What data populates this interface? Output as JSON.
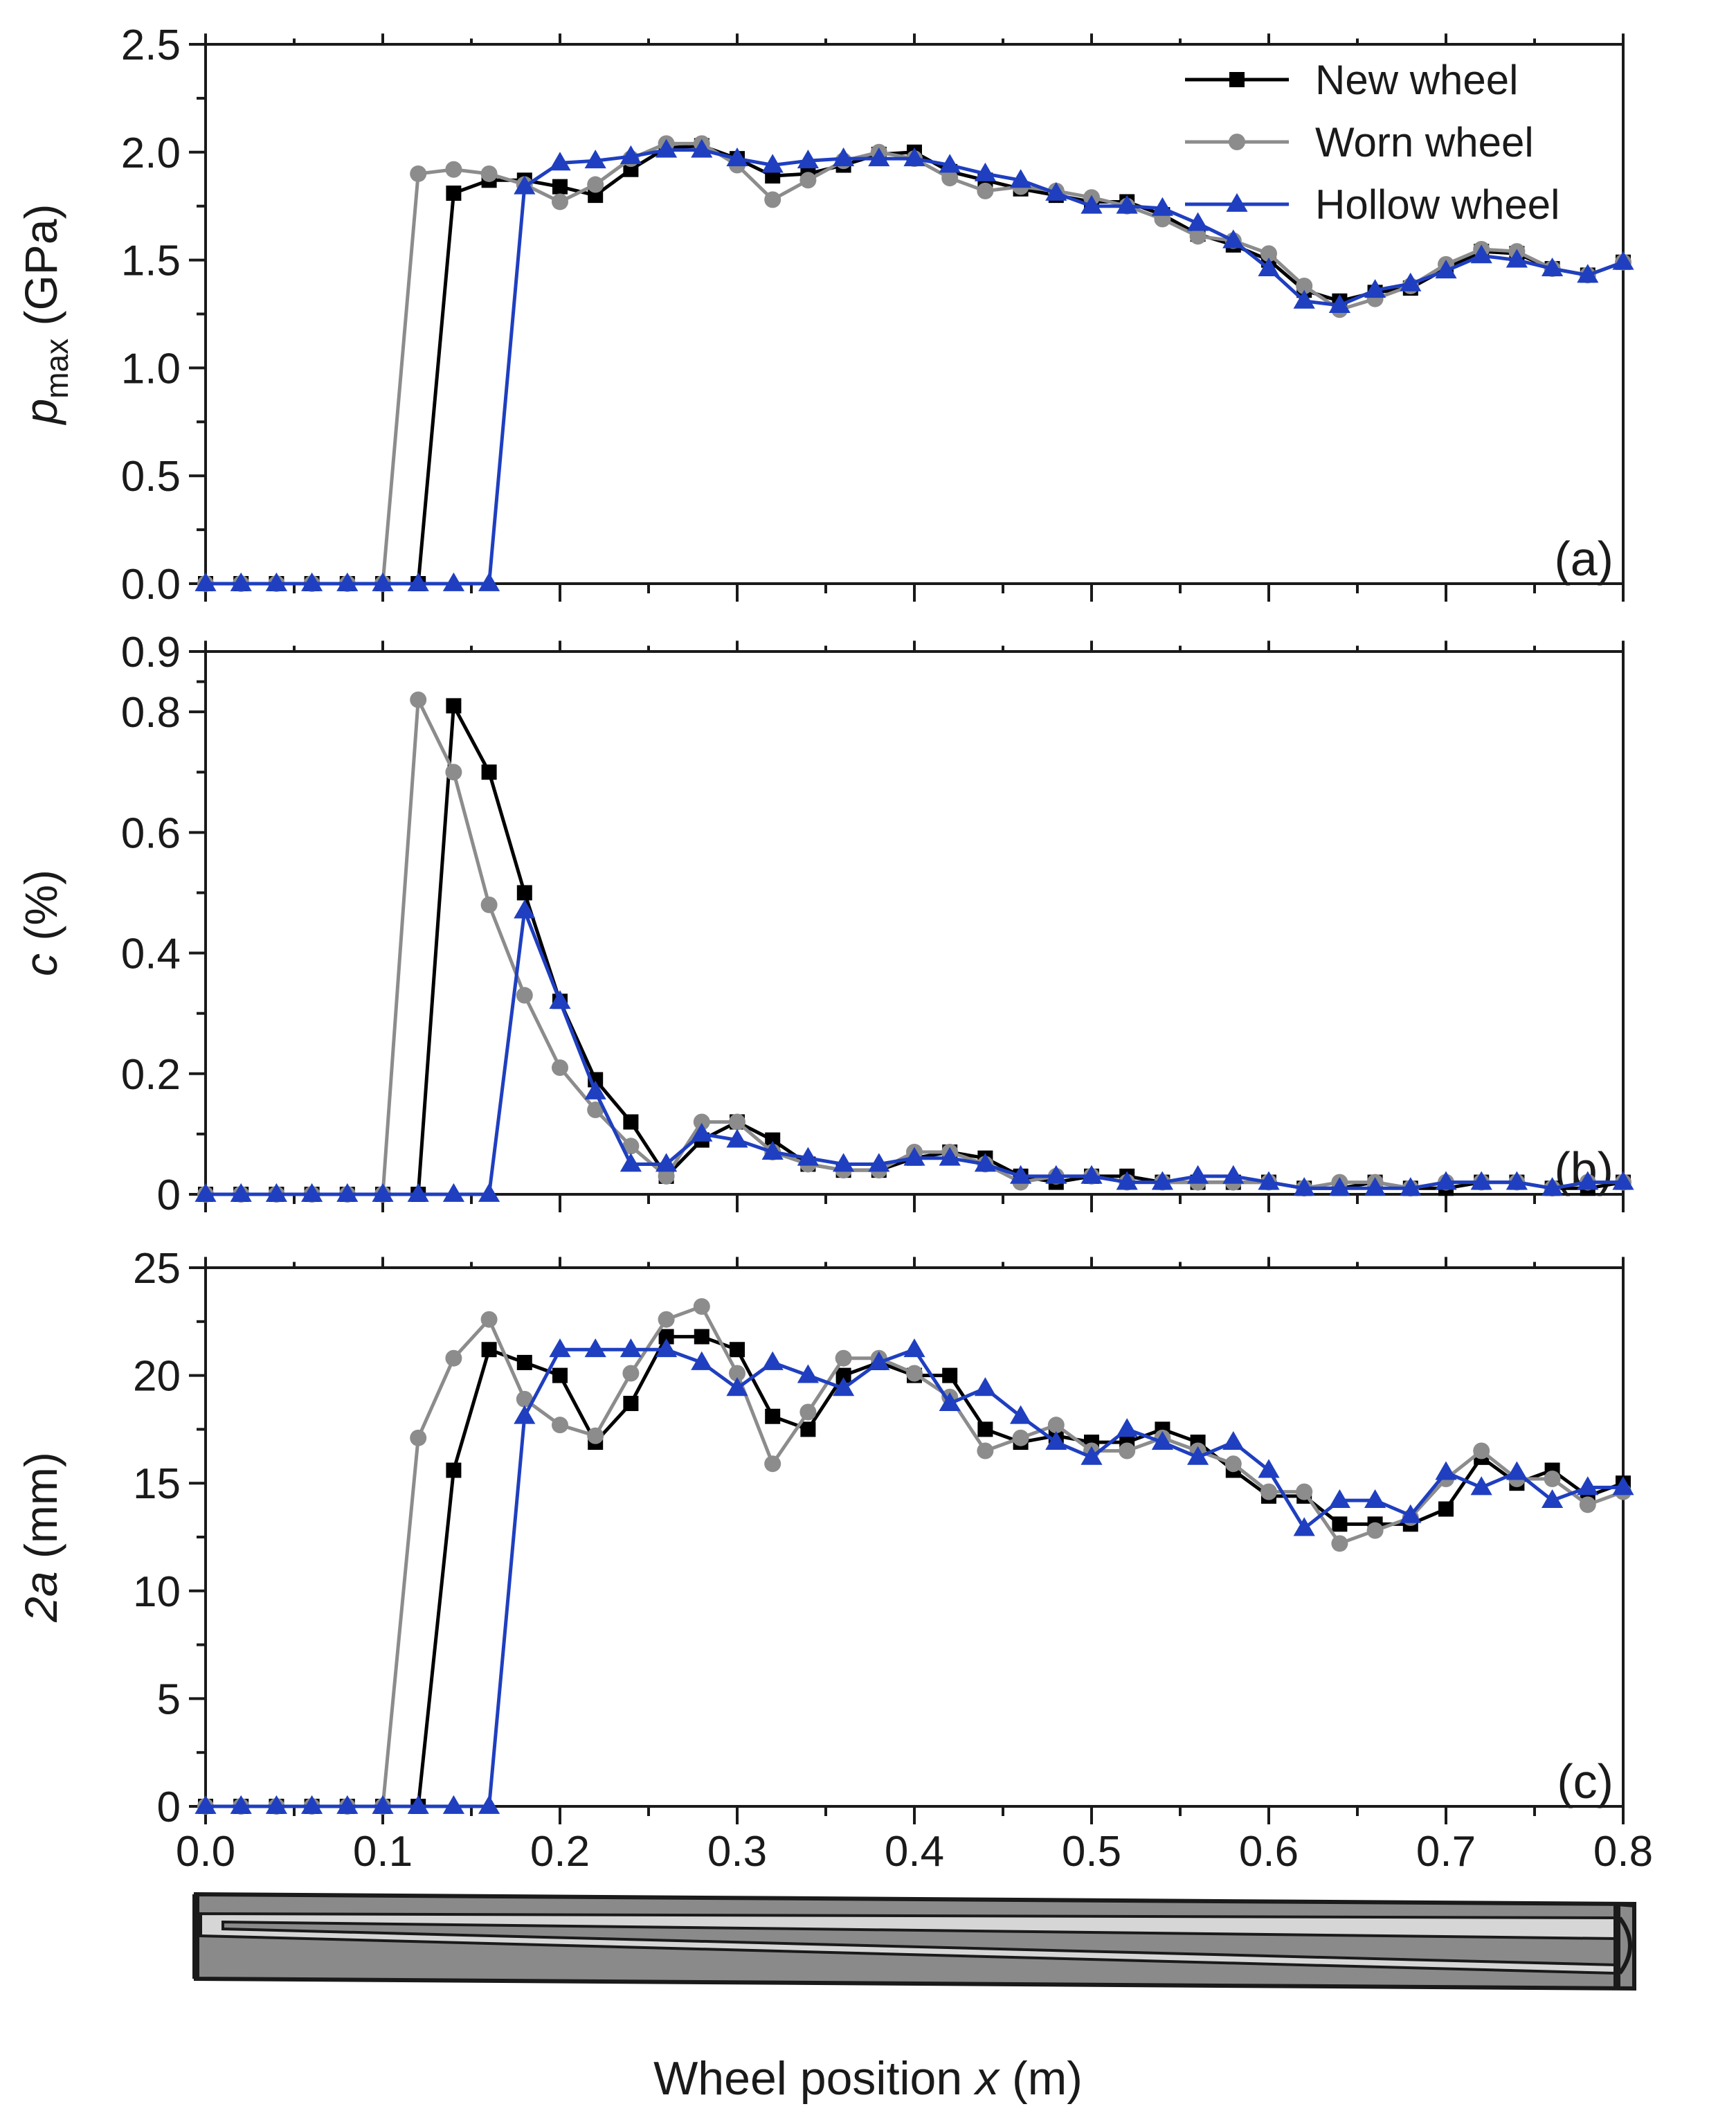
{
  "chart_data": {
    "type": "line",
    "x_axis": {
      "label_prefix": "Wheel position ",
      "label_var": "x",
      "label_suffix": " (m)",
      "range": [
        0,
        0.8
      ],
      "ticks": [
        "0.0",
        "0.1",
        "0.2",
        "0.3",
        "0.4",
        "0.5",
        "0.6",
        "0.7",
        "0.8"
      ]
    },
    "legend": {
      "position": "top-right",
      "entries": [
        "New wheel",
        "Worn wheel",
        "Hollow wheel"
      ]
    },
    "series_style": [
      {
        "name": "New wheel",
        "color": "#000000",
        "marker": "square"
      },
      {
        "name": "Worn wheel",
        "color": "#8c8c8c",
        "marker": "circle"
      },
      {
        "name": "Hollow wheel",
        "color": "#1f3fc0",
        "marker": "triangle"
      }
    ],
    "x": [
      0,
      0.02,
      0.04,
      0.06,
      0.08,
      0.1,
      0.12,
      0.14,
      0.16,
      0.18,
      0.2,
      0.22,
      0.24,
      0.26,
      0.28,
      0.3,
      0.32,
      0.34,
      0.36,
      0.38,
      0.4,
      0.42,
      0.44,
      0.46,
      0.48,
      0.5,
      0.52,
      0.54,
      0.56,
      0.58,
      0.6,
      0.62,
      0.64,
      0.66,
      0.68,
      0.7,
      0.72,
      0.74,
      0.76,
      0.78,
      0.8
    ],
    "panels": [
      {
        "tag": "(a)",
        "ylabel_var": "p",
        "ylabel_sub": "max",
        "ylabel_unit": " (GPa)",
        "ylim": [
          0,
          2.5
        ],
        "yticks": [
          "0.0",
          "0.5",
          "1.0",
          "1.5",
          "2.0",
          "2.5"
        ],
        "series": [
          {
            "name": "New wheel",
            "values": [
              0,
              0,
              0,
              0,
              0,
              0,
              0,
              1.81,
              1.87,
              1.87,
              1.84,
              1.8,
              1.92,
              2.02,
              2.03,
              1.97,
              1.89,
              1.9,
              1.94,
              1.99,
              2.0,
              1.91,
              1.87,
              1.83,
              1.8,
              1.77,
              1.77,
              1.71,
              1.62,
              1.57,
              1.5,
              1.36,
              1.31,
              1.35,
              1.37,
              1.46,
              1.54,
              1.53,
              1.46,
              1.43,
              1.49
            ]
          },
          {
            "name": "Worn wheel",
            "values": [
              0,
              0,
              0,
              0,
              0,
              0,
              1.9,
              1.92,
              1.9,
              1.85,
              1.77,
              1.85,
              1.97,
              2.04,
              2.04,
              1.94,
              1.78,
              1.87,
              1.96,
              2.0,
              1.97,
              1.88,
              1.82,
              1.84,
              1.82,
              1.79,
              1.75,
              1.69,
              1.61,
              1.59,
              1.53,
              1.38,
              1.27,
              1.32,
              1.38,
              1.48,
              1.55,
              1.54,
              1.46,
              1.43,
              1.49
            ]
          },
          {
            "name": "Hollow wheel",
            "values": [
              0,
              0,
              0,
              0,
              0,
              0,
              0,
              0,
              0,
              1.84,
              1.95,
              1.96,
              1.98,
              2.01,
              2.01,
              1.97,
              1.94,
              1.96,
              1.97,
              1.97,
              1.97,
              1.94,
              1.9,
              1.87,
              1.81,
              1.75,
              1.75,
              1.74,
              1.67,
              1.59,
              1.46,
              1.31,
              1.29,
              1.36,
              1.39,
              1.45,
              1.52,
              1.5,
              1.46,
              1.43,
              1.49
            ]
          }
        ]
      },
      {
        "tag": "(b)",
        "ylabel_var": "c",
        "ylabel_sub": "",
        "ylabel_unit": " (%)",
        "ylim": [
          0,
          0.9
        ],
        "yticks": [
          "0",
          "0.2",
          "0.4",
          "0.6",
          "0.8",
          "0.9"
        ],
        "series": [
          {
            "name": "New wheel",
            "values": [
              0,
              0,
              0,
              0,
              0,
              0,
              0,
              0.81,
              0.7,
              0.5,
              0.32,
              0.19,
              0.12,
              0.03,
              0.09,
              0.12,
              0.09,
              0.05,
              0.04,
              0.04,
              0.06,
              0.07,
              0.06,
              0.03,
              0.02,
              0.03,
              0.03,
              0.02,
              0.02,
              0.02,
              0.02,
              0.01,
              0.01,
              0.02,
              0.01,
              0.01,
              0.02,
              0.02,
              0.01,
              0.01,
              0.02
            ]
          },
          {
            "name": "Worn wheel",
            "values": [
              0,
              0,
              0,
              0,
              0,
              0,
              0.82,
              0.7,
              0.48,
              0.33,
              0.21,
              0.14,
              0.08,
              0.03,
              0.12,
              0.12,
              0.07,
              0.05,
              0.04,
              0.04,
              0.07,
              0.07,
              0.05,
              0.02,
              0.03,
              0.03,
              0.02,
              0.02,
              0.02,
              0.02,
              0.02,
              0.01,
              0.02,
              0.02,
              0.01,
              0.02,
              0.02,
              0.02,
              0.01,
              0.02,
              0.02
            ]
          },
          {
            "name": "Hollow wheel",
            "values": [
              0,
              0,
              0,
              0,
              0,
              0,
              0,
              0,
              0,
              0.47,
              0.32,
              0.17,
              0.05,
              0.05,
              0.1,
              0.09,
              0.07,
              0.06,
              0.05,
              0.05,
              0.06,
              0.06,
              0.05,
              0.03,
              0.03,
              0.03,
              0.02,
              0.02,
              0.03,
              0.03,
              0.02,
              0.01,
              0.01,
              0.01,
              0.01,
              0.02,
              0.02,
              0.02,
              0.01,
              0.02,
              0.02
            ]
          }
        ]
      },
      {
        "tag": "(c)",
        "ylabel_var": "2a",
        "ylabel_sub": "",
        "ylabel_unit": " (mm)",
        "ylim": [
          0,
          25
        ],
        "yticks": [
          "0",
          "5",
          "10",
          "15",
          "20",
          "25"
        ],
        "series": [
          {
            "name": "New wheel",
            "values": [
              0,
              0,
              0,
              0,
              0,
              0,
              0,
              15.6,
              21.2,
              20.6,
              20.0,
              16.9,
              18.7,
              21.8,
              21.8,
              21.2,
              18.1,
              17.5,
              20.0,
              20.6,
              20.0,
              20.0,
              17.5,
              16.9,
              17.2,
              16.9,
              16.9,
              17.5,
              16.9,
              15.6,
              14.4,
              14.4,
              13.1,
              13.1,
              13.1,
              13.8,
              16.2,
              15.0,
              15.6,
              14.4,
              15.0
            ]
          },
          {
            "name": "Worn wheel",
            "values": [
              0,
              0,
              0,
              0,
              0,
              0,
              17.1,
              20.8,
              22.6,
              18.9,
              17.7,
              17.2,
              20.1,
              22.6,
              23.2,
              20.1,
              15.9,
              18.3,
              20.8,
              20.8,
              20.1,
              19.0,
              16.5,
              17.1,
              17.7,
              16.5,
              16.5,
              17.1,
              16.5,
              15.9,
              14.6,
              14.6,
              12.2,
              12.8,
              13.4,
              15.2,
              16.5,
              15.2,
              15.2,
              14.0,
              14.6
            ]
          },
          {
            "name": "Hollow wheel",
            "values": [
              0,
              0,
              0,
              0,
              0,
              0,
              0,
              0,
              0,
              18.1,
              21.2,
              21.2,
              21.2,
              21.2,
              20.6,
              19.4,
              20.6,
              20.0,
              19.4,
              20.6,
              21.2,
              18.7,
              19.4,
              18.1,
              16.9,
              16.2,
              17.5,
              16.9,
              16.2,
              16.9,
              15.6,
              12.9,
              14.2,
              14.2,
              13.5,
              15.5,
              14.8,
              15.5,
              14.2,
              14.8,
              14.8
            ]
          }
        ]
      }
    ]
  }
}
